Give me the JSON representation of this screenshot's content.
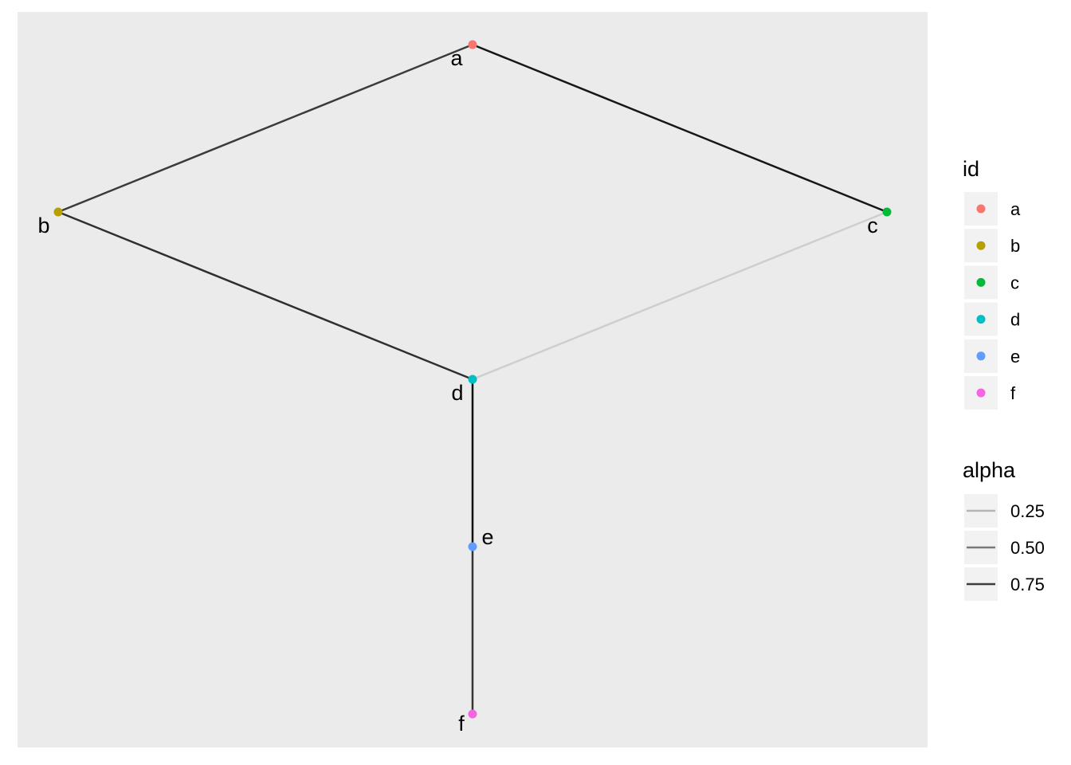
{
  "chart_data": {
    "type": "network",
    "nodes": [
      {
        "id": "a",
        "label": "a",
        "color": "#F8766D",
        "x": 0,
        "y": 2
      },
      {
        "id": "b",
        "label": "b",
        "color": "#B79F00",
        "x": -1,
        "y": 1
      },
      {
        "id": "c",
        "label": "c",
        "color": "#00BA38",
        "x": 1,
        "y": 1
      },
      {
        "id": "d",
        "label": "d",
        "color": "#00BFC4",
        "x": 0,
        "y": 0
      },
      {
        "id": "e",
        "label": "e",
        "color": "#619CFF",
        "x": 0,
        "y": -1
      },
      {
        "id": "f",
        "label": "f",
        "color": "#F564E3",
        "x": 0,
        "y": -2
      }
    ],
    "edges": [
      {
        "from": "a",
        "to": "b",
        "alpha": 0.75
      },
      {
        "from": "a",
        "to": "c",
        "alpha": 0.9
      },
      {
        "from": "b",
        "to": "d",
        "alpha": 0.8
      },
      {
        "from": "c",
        "to": "d",
        "alpha": 0.12
      },
      {
        "from": "d",
        "to": "e",
        "alpha": 0.95
      },
      {
        "from": "e",
        "to": "f",
        "alpha": 0.78
      }
    ],
    "legend": {
      "id": {
        "title": "id",
        "entries": [
          "a",
          "b",
          "c",
          "d",
          "e",
          "f"
        ]
      },
      "alpha": {
        "title": "alpha",
        "entries": [
          {
            "label": "0.25",
            "alpha": 0.25
          },
          {
            "label": "0.50",
            "alpha": 0.5
          },
          {
            "label": "0.75",
            "alpha": 0.75
          }
        ]
      }
    },
    "panel_color": "#EBEBEB",
    "edge_color": "#000000"
  }
}
